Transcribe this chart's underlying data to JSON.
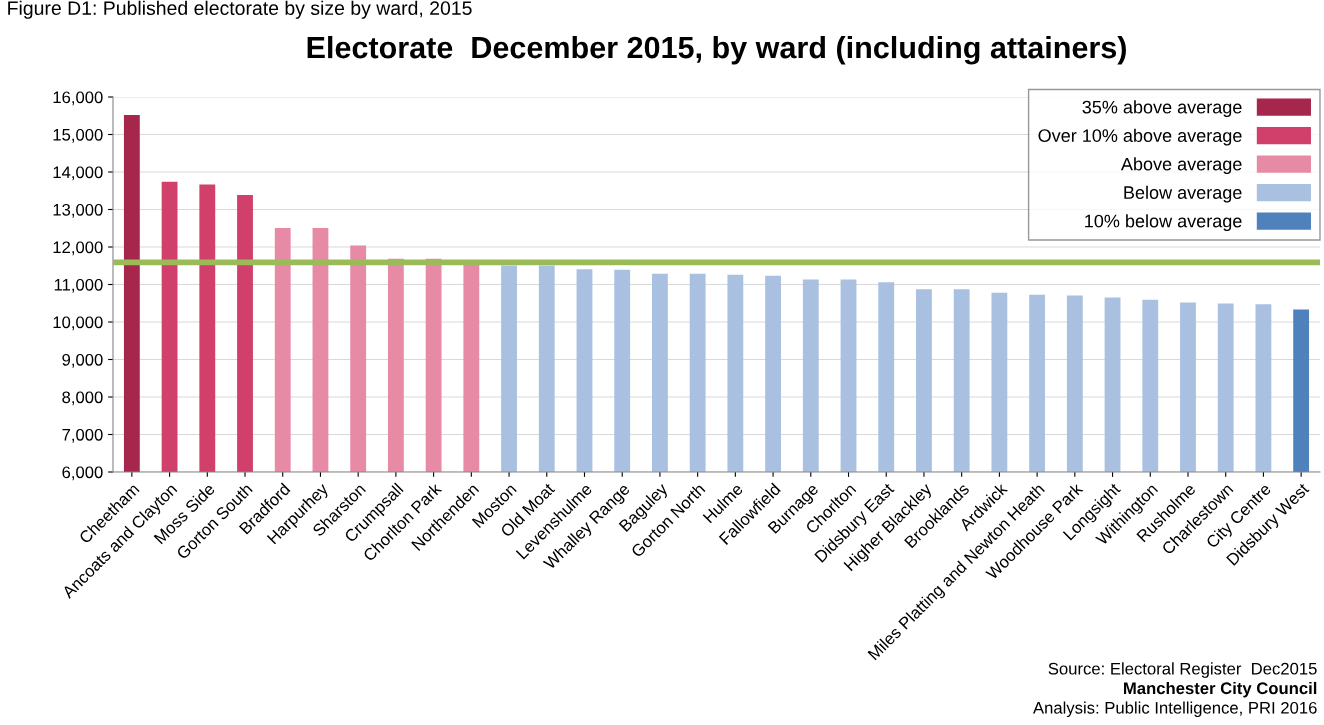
{
  "chart_data": {
    "type": "bar",
    "title": "Electorate  December 2015, by ward (including attainers)",
    "categories": [
      "Cheetham",
      "Ancoats and Clayton",
      "Moss Side",
      "Gorton South",
      "Bradford",
      "Harpurhey",
      "Sharston",
      "Crumpsall",
      "Chorlton Park",
      "Northenden",
      "Moston",
      "Old Moat",
      "Levenshulme",
      "Whalley Range",
      "Baguley",
      "Gorton North",
      "Hulme",
      "Fallowfield",
      "Burnage",
      "Chorlton",
      "Didsbury East",
      "Higher Blackley",
      "Brooklands",
      "Ardwick",
      "Miles Platting and Newton Heath",
      "Woodhouse Park",
      "Longsight",
      "Withington",
      "Rusholme",
      "Charlestown",
      "City Centre",
      "Didsbury West"
    ],
    "series": [
      {
        "name": "35% above average",
        "color": "#a6264c",
        "values": [
          15520,
          null,
          null,
          null,
          null,
          null,
          null,
          null,
          null,
          null,
          null,
          null,
          null,
          null,
          null,
          null,
          null,
          null,
          null,
          null,
          null,
          null,
          null,
          null,
          null,
          null,
          null,
          null,
          null,
          null,
          null,
          null
        ]
      },
      {
        "name": "Over 10% above average",
        "color": "#d13f6b",
        "values": [
          null,
          13740,
          13670,
          13390,
          null,
          null,
          null,
          null,
          null,
          null,
          null,
          null,
          null,
          null,
          null,
          null,
          null,
          null,
          null,
          null,
          null,
          null,
          null,
          null,
          null,
          null,
          null,
          null,
          null,
          null,
          null,
          null
        ]
      },
      {
        "name": "Above average",
        "color": "#e68aa6",
        "values": [
          null,
          null,
          null,
          null,
          12510,
          12510,
          12040,
          11690,
          11690,
          11550,
          null,
          null,
          null,
          null,
          null,
          null,
          null,
          null,
          null,
          null,
          null,
          null,
          null,
          null,
          null,
          null,
          null,
          null,
          null,
          null,
          null,
          null
        ]
      },
      {
        "name": "Below average",
        "color": "#a9c0e0",
        "values": [
          null,
          null,
          null,
          null,
          null,
          null,
          null,
          null,
          null,
          null,
          11510,
          11510,
          11410,
          11395,
          11285,
          11285,
          11260,
          11235,
          11135,
          11135,
          11060,
          10875,
          10875,
          10780,
          10730,
          10705,
          10655,
          10595,
          10520,
          10495,
          10470,
          null
        ]
      },
      {
        "name": "10% below average",
        "color": "#4f81bd",
        "values": [
          null,
          null,
          null,
          null,
          null,
          null,
          null,
          null,
          null,
          null,
          null,
          null,
          null,
          null,
          null,
          null,
          null,
          null,
          null,
          null,
          null,
          null,
          null,
          null,
          null,
          null,
          null,
          null,
          null,
          null,
          null,
          10335
        ]
      }
    ],
    "ylim": [
      6000,
      16000
    ],
    "yticks": [
      {
        "value": 6000,
        "label": "6,000"
      },
      {
        "value": 7000,
        "label": "7,000"
      },
      {
        "value": 8000,
        "label": "8,000"
      },
      {
        "value": 9000,
        "label": "9,000"
      },
      {
        "value": 10000,
        "label": "10,000"
      },
      {
        "value": 11000,
        "label": "11,000"
      },
      {
        "value": 12000,
        "label": "12,000"
      },
      {
        "value": 13000,
        "label": "13,000"
      },
      {
        "value": 14000,
        "label": "14,000"
      },
      {
        "value": 15000,
        "label": "15,000"
      },
      {
        "value": 16000,
        "label": "16,000"
      }
    ],
    "ref_lines": [
      {
        "axis": "y",
        "value": 11590,
        "color": "#9bbb59"
      }
    ],
    "grid": "y",
    "legend": "top right",
    "annotations": [
      "Figure D1: Published electorate by size by ward, 2015",
      "Source: Electoral Register  Dec2015",
      "Manchester City Council",
      "Analysis: Public Intelligence, PRI 2016"
    ]
  }
}
